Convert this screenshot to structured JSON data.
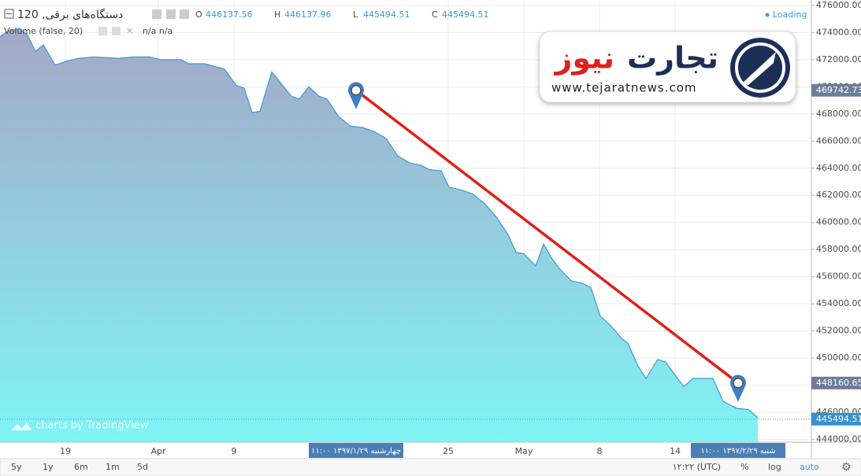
{
  "chart_data": {
    "type": "area",
    "title": "دستگاه‌های برقی, 120",
    "ohlc_labels": [
      "O",
      "H",
      "L",
      "C"
    ],
    "ohlc_values": [
      446137.56,
      446137.96,
      445494.51,
      445494.51
    ],
    "volume_label": "Volume (false, 20)",
    "volume_values": "n/a n/a",
    "status": "Loading",
    "color": "#3a9ad9",
    "x": [
      0,
      1,
      2.5,
      3.5,
      4.5,
      5.5,
      7,
      8.5,
      10,
      12,
      15,
      17,
      19,
      20.5,
      23,
      24,
      26,
      28.5,
      30,
      31,
      32,
      33,
      34.5,
      37,
      38,
      39.2,
      40.5,
      41.5,
      43,
      44.5,
      46,
      47.5,
      49,
      50.5,
      52,
      53.5,
      54.5,
      56,
      57,
      58.5,
      60,
      61.5,
      63,
      64.5,
      65.5,
      66.5,
      68,
      69,
      70,
      71,
      72.5,
      74,
      75,
      76.2,
      77.5,
      79,
      79.7,
      81,
      82,
      83.5,
      84.5,
      85.5,
      86.8,
      88,
      90.5,
      91.8,
      93.5,
      95,
      96.2
    ],
    "values": [
      473700,
      474100,
      474300,
      473800,
      472600,
      473100,
      471600,
      471900,
      472100,
      472200,
      472100,
      472200,
      472200,
      472000,
      472000,
      471700,
      471700,
      471300,
      470100,
      469900,
      468100,
      468200,
      471100,
      469300,
      469100,
      470000,
      469300,
      469100,
      467800,
      467100,
      467000,
      466700,
      466200,
      464900,
      464400,
      464200,
      463900,
      463800,
      462600,
      462400,
      462100,
      461400,
      460400,
      459100,
      457800,
      457700,
      456800,
      458400,
      457400,
      456600,
      455700,
      455500,
      455200,
      453100,
      452400,
      451400,
      451100,
      449400,
      448500,
      449900,
      449700,
      448900,
      447900,
      448500,
      448500,
      446800,
      446300,
      446200,
      445600
    ],
    "xlim": [
      0,
      103
    ],
    "xticks": [
      {
        "value": 8.3,
        "label": "19"
      },
      {
        "value": 20.1,
        "label": "Apr"
      },
      {
        "value": 29.7,
        "label": "9"
      },
      {
        "value": 56.9,
        "label": "25"
      },
      {
        "value": 66.5,
        "label": "May"
      },
      {
        "value": 76.1,
        "label": "8"
      },
      {
        "value": 85.7,
        "label": "14"
      }
    ],
    "ylim": [
      443800,
      476400
    ],
    "yticks": [
      {
        "value": 444000,
        "label": "444000.00"
      },
      {
        "value": 446000,
        "label": "446000.00"
      },
      {
        "value": 448000,
        "label": "448000.00"
      },
      {
        "value": 450000,
        "label": "450000.00"
      },
      {
        "value": 452000,
        "label": "452000.00"
      },
      {
        "value": 454000,
        "label": "454000.00"
      },
      {
        "value": 456000,
        "label": "456000.00"
      },
      {
        "value": 458000,
        "label": "458000.00"
      },
      {
        "value": 460000,
        "label": "460000.00"
      },
      {
        "value": 462000,
        "label": "462000.00"
      },
      {
        "value": 464000,
        "label": "464000.00"
      },
      {
        "value": 466000,
        "label": "466000.00"
      },
      {
        "value": 468000,
        "label": "468000.00"
      },
      {
        "value": 470000,
        "label": "470000.00"
      },
      {
        "value": 472000,
        "label": "472000.00"
      },
      {
        "value": 474000,
        "label": "474000.00"
      },
      {
        "value": 476000,
        "label": "476000.00"
      }
    ],
    "grid": true,
    "log_scale": false,
    "price_labels": [
      469742.73,
      448160.65,
      445494.51
    ],
    "trend_line": {
      "x": [
        45.2,
        93.7
      ],
      "values": [
        469742.73,
        448160.65
      ],
      "color": "#e0201b"
    },
    "date_labels": [
      "چهارشنبه ۱۳۹۷/۱/۲۹ ۱۱:۰۰",
      "شنبه ۱۳۹۷/۲/۲۹ ۱۱:۰۰"
    ],
    "watermark": "charts by TradingView",
    "logo_word1": "تجارت",
    "logo_word2": "نیوز",
    "logo_url": "www.tejaratnews.com",
    "toolbar": {
      "ranges": [
        "5y",
        "1y",
        "6m",
        "1m",
        "5d"
      ],
      "time": "۱۲:۲۲ (UTC)",
      "options": [
        "%",
        "log",
        "auto"
      ]
    }
  }
}
